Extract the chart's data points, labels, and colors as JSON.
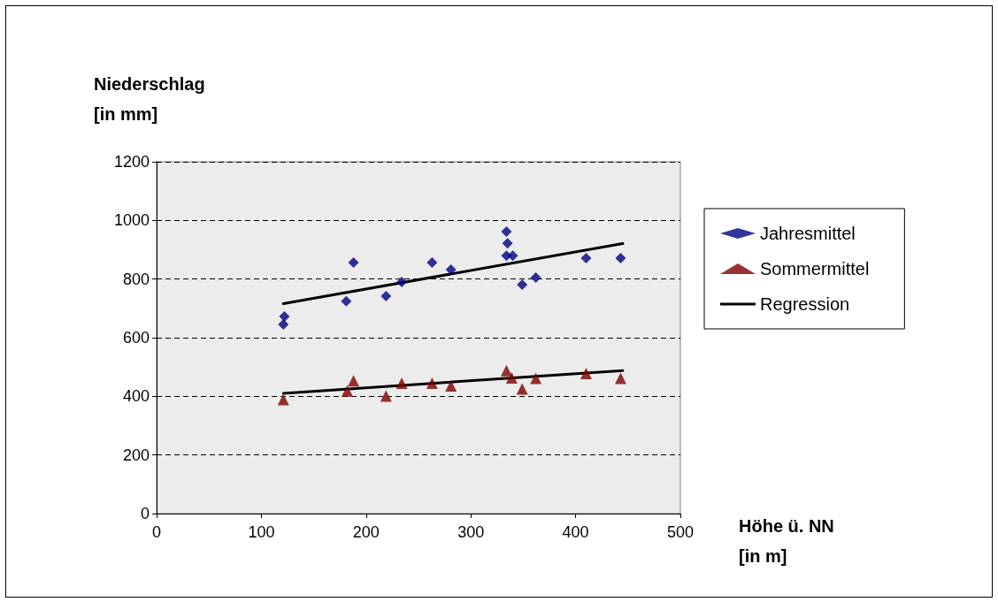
{
  "chart_data": {
    "type": "scatter",
    "xlabel": "Höhe ü. NN\n[in m]",
    "ylabel": "Niederschlag\n[in mm]",
    "xlim": [
      0,
      500
    ],
    "xticks": [
      0,
      100,
      200,
      300,
      400,
      500
    ],
    "ylim": [
      0,
      1200
    ],
    "yticks": [
      0,
      200,
      400,
      600,
      800,
      1000,
      1200
    ],
    "grid": "y",
    "legend": "right",
    "series": [
      {
        "name": "Jahresmittel",
        "color": "#000080",
        "marker": "diamond",
        "x": [
          121,
          122,
          181,
          188,
          219,
          234,
          263,
          281,
          334,
          335,
          334,
          340,
          349,
          362,
          410,
          443
        ],
        "values": [
          645,
          672,
          724,
          856,
          742,
          790,
          856,
          832,
          962,
          922,
          880,
          880,
          781,
          805,
          871,
          871
        ]
      },
      {
        "name": "Sommermittel",
        "color": "#800000",
        "marker": "triangle",
        "x": [
          121,
          182,
          188,
          219,
          234,
          263,
          281,
          334,
          339,
          349,
          362,
          410,
          443
        ],
        "values": [
          389,
          418,
          453,
          401,
          445,
          445,
          436,
          488,
          463,
          425,
          461,
          478,
          461
        ]
      },
      {
        "name": "Regression",
        "type": "line",
        "color": "#000000",
        "marker": "none",
        "line_style": "solid",
        "x": [
          121,
          445
        ],
        "values": [
          716,
          921
        ]
      },
      {
        "type": "line",
        "color": "#000000",
        "marker": "none",
        "line_style": "solid",
        "x": [
          121,
          445
        ],
        "values": [
          410,
          488
        ]
      }
    ]
  }
}
